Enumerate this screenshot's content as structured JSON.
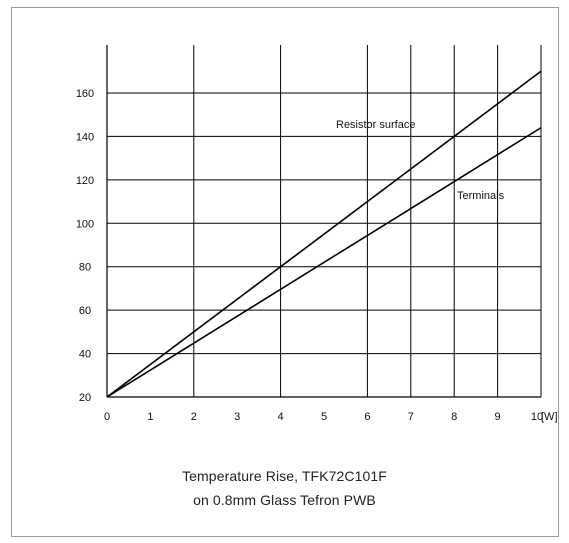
{
  "caption": {
    "line1": "Temperature Rise, TFK72C101F",
    "line2": "on 0.8mm Glass  Tefron PWB"
  },
  "chart_data": {
    "type": "line",
    "title": "Temperature Rise, TFK72C101F on 0.8mm Glass  Tefron PWB",
    "xlabel": "",
    "ylabel": "",
    "xlim": [
      0,
      10
    ],
    "ylim": [
      20,
      170
    ],
    "x_unit": "[W]",
    "xticks": [
      0,
      1,
      2,
      3,
      4,
      5,
      6,
      7,
      8,
      9,
      10
    ],
    "yticks": [
      20,
      40,
      60,
      80,
      100,
      120,
      140,
      160
    ],
    "x_gridlines": [
      2,
      4,
      6,
      7,
      8,
      9,
      10
    ],
    "y_gridlines": [
      40,
      60,
      80,
      100,
      120,
      140,
      160
    ],
    "grid": true,
    "legend": "none",
    "series": [
      {
        "name": "Resistor surface",
        "x": [
          0,
          10
        ],
        "y": [
          20,
          170
        ]
      },
      {
        "name": "Terminals",
        "x": [
          0,
          10
        ],
        "y": [
          20,
          144
        ]
      }
    ],
    "annotations": [
      {
        "text": "Resistor surface",
        "series": 0
      },
      {
        "text": "Terminals",
        "series": 1
      }
    ]
  }
}
